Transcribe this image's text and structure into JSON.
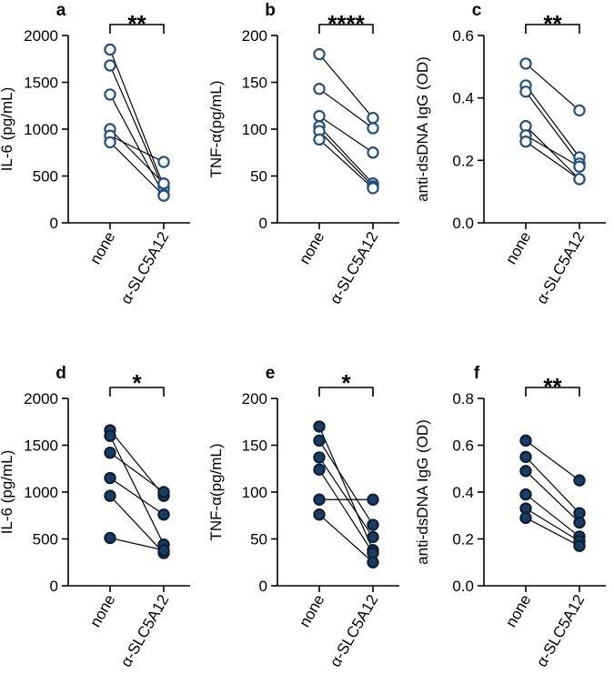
{
  "chart_data": [
    {
      "panel": "a",
      "type": "scatter",
      "style": "paired",
      "filled": false,
      "ylabel": "IL-6 (pg/mL)",
      "ylim": [
        0,
        2000
      ],
      "yticks": [
        0,
        500,
        1000,
        1500,
        2000
      ],
      "categories": [
        "none",
        "α-SLC5A12"
      ],
      "pairs": [
        [
          1850,
          390
        ],
        [
          1680,
          360
        ],
        [
          1370,
          300
        ],
        [
          1000,
          420
        ],
        [
          930,
          650
        ],
        [
          860,
          290
        ]
      ],
      "significance": "**"
    },
    {
      "panel": "b",
      "type": "scatter",
      "style": "paired",
      "filled": false,
      "ylabel": "TNF-α(pg/mL)",
      "ylim": [
        0,
        200
      ],
      "yticks": [
        0,
        50,
        100,
        150,
        200
      ],
      "categories": [
        "none",
        "α-SLC5A12"
      ],
      "pairs": [
        [
          180,
          112
        ],
        [
          143,
          101
        ],
        [
          114,
          75
        ],
        [
          103,
          42
        ],
        [
          98,
          39
        ],
        [
          89,
          37
        ]
      ],
      "significance": "****"
    },
    {
      "panel": "c",
      "type": "scatter",
      "style": "paired",
      "filled": false,
      "ylabel": "anti-dsDNA IgG (OD)",
      "ylim": [
        0,
        0.6
      ],
      "yticks": [
        0.0,
        0.2,
        0.4,
        0.6
      ],
      "categories": [
        "none",
        "α-SLC5A12"
      ],
      "pairs": [
        [
          0.51,
          0.36
        ],
        [
          0.44,
          0.21
        ],
        [
          0.42,
          0.19
        ],
        [
          0.31,
          0.14
        ],
        [
          0.28,
          0.18
        ],
        [
          0.26,
          0.14
        ]
      ],
      "significance": "**"
    },
    {
      "panel": "d",
      "type": "scatter",
      "style": "paired",
      "filled": true,
      "ylabel": "IL-6 (pg/mL)",
      "ylim": [
        0,
        2000
      ],
      "yticks": [
        0,
        500,
        1000,
        1500,
        2000
      ],
      "categories": [
        "none",
        "α-SLC5A12"
      ],
      "pairs": [
        [
          1660,
          960
        ],
        [
          1600,
          440
        ],
        [
          1420,
          1000
        ],
        [
          1150,
          760
        ],
        [
          960,
          350
        ],
        [
          510,
          380
        ]
      ],
      "significance": "*"
    },
    {
      "panel": "e",
      "type": "scatter",
      "style": "paired",
      "filled": true,
      "ylabel": "TNF-α(pg/mL)",
      "ylim": [
        0,
        200
      ],
      "yticks": [
        0,
        50,
        100,
        150,
        200
      ],
      "categories": [
        "none",
        "α-SLC5A12"
      ],
      "pairs": [
        [
          170,
          38
        ],
        [
          155,
          65
        ],
        [
          137,
          52
        ],
        [
          124,
          35
        ],
        [
          92,
          92
        ],
        [
          76,
          25
        ]
      ],
      "significance": "*"
    },
    {
      "panel": "f",
      "type": "scatter",
      "style": "paired",
      "filled": true,
      "ylabel": "anti-dsDNA IgG (OD)",
      "ylim": [
        0,
        0.8
      ],
      "yticks": [
        0.0,
        0.2,
        0.4,
        0.6,
        0.8
      ],
      "categories": [
        "none",
        "α-SLC5A12"
      ],
      "pairs": [
        [
          0.62,
          0.45
        ],
        [
          0.55,
          0.31
        ],
        [
          0.49,
          0.27
        ],
        [
          0.39,
          0.21
        ],
        [
          0.33,
          0.19
        ],
        [
          0.29,
          0.17
        ]
      ],
      "significance": "**"
    }
  ],
  "colors": {
    "marker_stroke": "#24517f",
    "marker_fill_solid": "#1c3d63",
    "marker_fill_open": "#ffffff",
    "axis": "#000000",
    "line": "#000000"
  }
}
